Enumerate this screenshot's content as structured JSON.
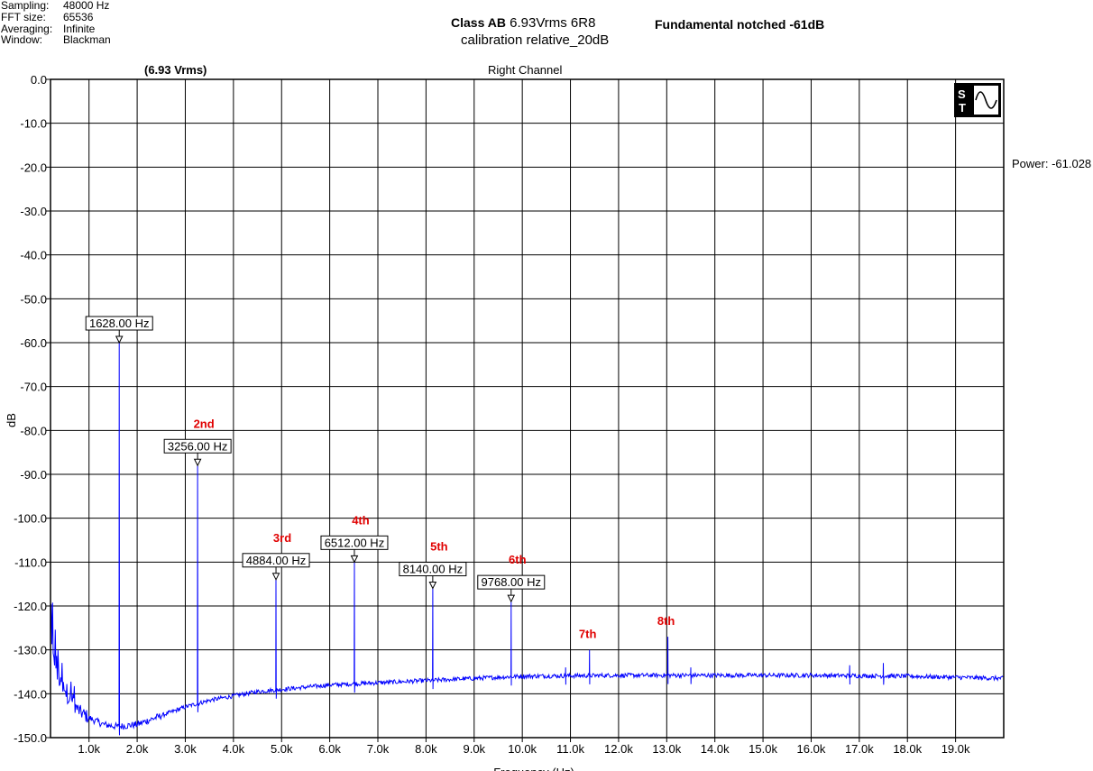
{
  "meta": {
    "sampling_label": "Sampling:",
    "sampling_value": "48000 Hz",
    "fft_label": "FFT size:",
    "fft_value": "65536",
    "averaging_label": "Averaging:",
    "averaging_value": "Infinite",
    "window_label": "Window:",
    "window_value": "Blackman"
  },
  "header": {
    "title_bold": "Class AB",
    "title_rest": "6.93Vrms 6R8",
    "subtitle": "calibration relative_20dB",
    "right_note": "Fundamental notched -61dB",
    "left_label": "(6.93 Vrms)",
    "channel": "Right Channel",
    "power_readout": "Power: -61.028"
  },
  "logo": {
    "letters": "ST",
    "icon": "sine-wave-icon"
  },
  "chart_data": {
    "type": "line",
    "xlabel": "Frequency (Hz)",
    "ylabel": "dB",
    "xlim": [
      200,
      20000
    ],
    "ylim": [
      -150,
      0
    ],
    "x_ticks": [
      1000,
      2000,
      3000,
      4000,
      5000,
      6000,
      7000,
      8000,
      9000,
      10000,
      11000,
      12000,
      13000,
      14000,
      15000,
      16000,
      17000,
      18000,
      19000
    ],
    "x_tick_labels": [
      "1.0k",
      "2.0k",
      "3.0k",
      "4.0k",
      "5.0k",
      "6.0k",
      "7.0k",
      "8.0k",
      "9.0k",
      "10.0k",
      "11.0k",
      "12.0k",
      "13.0k",
      "14.0k",
      "15.0k",
      "16.0k",
      "17.0k",
      "18.0k",
      "19.0k"
    ],
    "y_ticks": [
      0,
      -10,
      -20,
      -30,
      -40,
      -50,
      -60,
      -70,
      -80,
      -90,
      -100,
      -110,
      -120,
      -130,
      -140,
      -150
    ],
    "y_tick_labels": [
      "0.0",
      "-10.0",
      "-20.0",
      "-30.0",
      "-40.0",
      "-50.0",
      "-60.0",
      "-70.0",
      "-80.0",
      "-90.0",
      "-100.0",
      "-110.0",
      "-120.0",
      "-130.0",
      "-140.0",
      "-150.0"
    ],
    "grid": true,
    "line_color": "#0000ff",
    "noise_floor": [
      [
        200,
        -127
      ],
      [
        300,
        -135
      ],
      [
        500,
        -140
      ],
      [
        800,
        -144
      ],
      [
        1000,
        -145.5
      ],
      [
        1300,
        -147
      ],
      [
        1600,
        -147.5
      ],
      [
        2000,
        -147
      ],
      [
        2500,
        -145
      ],
      [
        3000,
        -143
      ],
      [
        3500,
        -141.5
      ],
      [
        4000,
        -140.5
      ],
      [
        4500,
        -139.5
      ],
      [
        5000,
        -139
      ],
      [
        6000,
        -138
      ],
      [
        7000,
        -137.5
      ],
      [
        8000,
        -137
      ],
      [
        9000,
        -136.5
      ],
      [
        10000,
        -136
      ],
      [
        12000,
        -135.8
      ],
      [
        14000,
        -135.8
      ],
      [
        16000,
        -135.8
      ],
      [
        18000,
        -136
      ],
      [
        20000,
        -136.5
      ]
    ],
    "peaks": [
      {
        "freq": 1628,
        "db": -60,
        "label": "1628.00 Hz",
        "harmonic": ""
      },
      {
        "freq": 3256,
        "db": -88,
        "label": "3256.00 Hz",
        "harmonic": "2nd"
      },
      {
        "freq": 4884,
        "db": -114,
        "label": "4884.00 Hz",
        "harmonic": "3rd"
      },
      {
        "freq": 6512,
        "db": -110,
        "label": "6512.00 Hz",
        "harmonic": "4th"
      },
      {
        "freq": 8140,
        "db": -116,
        "label": "8140.00 Hz",
        "harmonic": "5th"
      },
      {
        "freq": 9768,
        "db": -119,
        "label": "9768.00 Hz",
        "harmonic": "6th"
      },
      {
        "freq": 11396,
        "db": -130,
        "label": "",
        "harmonic": "7th"
      },
      {
        "freq": 13024,
        "db": -127,
        "label": "",
        "harmonic": "8th"
      }
    ],
    "minor_spurs": [
      {
        "freq": 10900,
        "db": -134
      },
      {
        "freq": 13500,
        "db": -134
      },
      {
        "freq": 16800,
        "db": -133.5
      },
      {
        "freq": 17500,
        "db": -133
      }
    ],
    "harmonic_color": "#e00000"
  }
}
